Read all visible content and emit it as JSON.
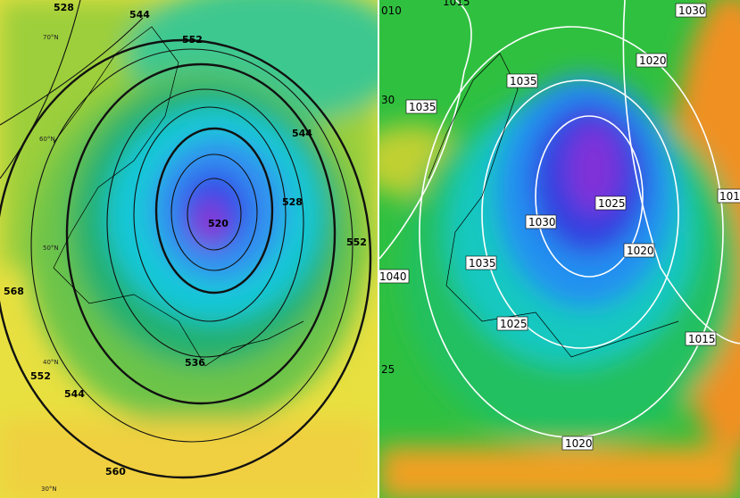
{
  "left_map": {
    "contour_labels": [
      "528",
      "544",
      "552",
      "544",
      "528",
      "520",
      "552",
      "568",
      "552",
      "544",
      "536",
      "560"
    ],
    "latitude_labels": [
      "70°N",
      "60°N",
      "50°N",
      "40°N",
      "30°N"
    ]
  },
  "right_map": {
    "contour_labels": [
      "010",
      "1015",
      "1030",
      "1020",
      "1035",
      "1035",
      "30",
      "1025",
      "1030",
      "1020",
      "1035",
      "1040",
      "1025",
      "1015",
      "1020",
      "25",
      "101"
    ]
  }
}
